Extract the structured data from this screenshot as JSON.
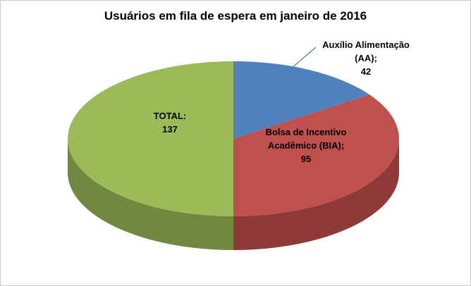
{
  "frame": {
    "background": "#ffffff",
    "border_color": "#c9c9c9"
  },
  "chart_data": {
    "type": "pie",
    "effect": "3d",
    "title": "Usuários em fila de espera em janeiro de 2016",
    "start_angle": 0,
    "direction": "clockwise",
    "legend": "none",
    "total": 274,
    "leader_line_color": "#4f81bd",
    "series": [
      {
        "key": "aa",
        "name": "Auxílio Alimentação (AA)",
        "value": 42,
        "color": "#4f81bd",
        "side_color": "#31517a",
        "label_placement": "outside",
        "label_lines": [
          "Auxílio Alimentação",
          "(AA);",
          "42"
        ]
      },
      {
        "key": "bia",
        "name": "Bolsa de Incentivo Acadêmico (BIA)",
        "value": 95,
        "color": "#c0504d",
        "side_color": "#8e3a37",
        "label_placement": "inside",
        "label_lines": [
          "Bolsa de Incentivo",
          "Acadêmico (BIA);",
          "95"
        ]
      },
      {
        "key": "total",
        "name": "TOTAL",
        "value": 137,
        "color": "#9bbb59",
        "side_color": "#71893f",
        "label_placement": "inside",
        "label_lines": [
          "TOTAL:",
          "137"
        ]
      }
    ]
  }
}
